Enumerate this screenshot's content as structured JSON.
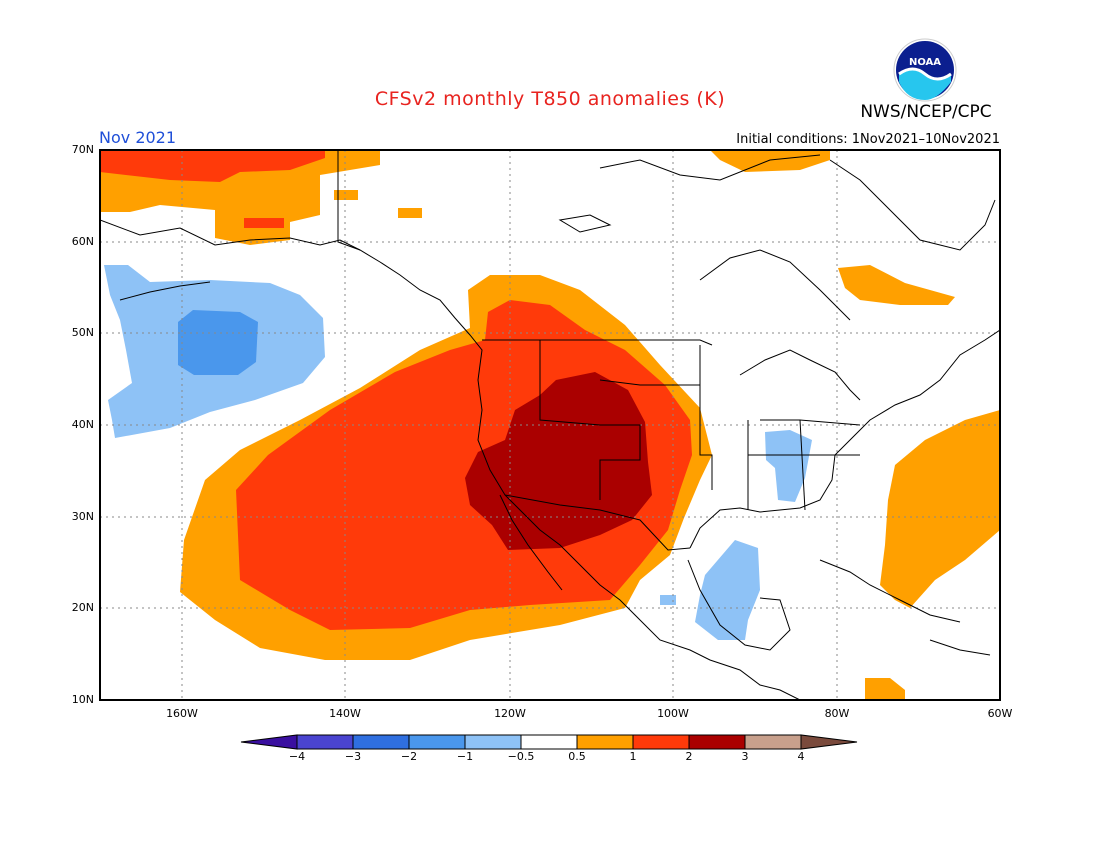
{
  "header": {
    "title": "CFSv2 monthly T850 anomalies (K)",
    "agency": "NWS/NCEP/CPC",
    "period": "Nov 2021",
    "initial_conditions": "Initial conditions: 1Nov2021–10Nov2021"
  },
  "logo": {
    "icon": "noaa-logo",
    "text": "NOAA"
  },
  "axes": {
    "lat_labels": [
      "70N",
      "60N",
      "50N",
      "40N",
      "30N",
      "20N",
      "10N"
    ],
    "lon_labels": [
      "160W",
      "140W",
      "120W",
      "100W",
      "80W",
      "60W"
    ]
  },
  "colorbar": {
    "labels": [
      "−4",
      "−3",
      "−2",
      "−1",
      "−0.5",
      "0.5",
      "1",
      "2",
      "3",
      "4"
    ],
    "colors": [
      "#3a0fa0",
      "#4a44d0",
      "#2f6fe0",
      "#4a97ec",
      "#8ec2f6",
      "#ffffff",
      "#ffa000",
      "#ff3a0a",
      "#aa0000",
      "#c8a08c",
      "#7a4a3c"
    ]
  },
  "map": {
    "region": "North Pacific and North America",
    "lat_range": [
      "10N",
      "70N"
    ],
    "lon_range": [
      "170W",
      "60W"
    ],
    "anomaly_regions": [
      {
        "name": "east-pacific-warm-anomaly",
        "level": "1 to 2 K"
      },
      {
        "name": "western-us-core-warm-anomaly",
        "level": "2 to 3 K"
      },
      {
        "name": "gulf-of-alaska-cold-anomaly",
        "level": "-2 to -1 K"
      },
      {
        "name": "western-atlantic-warm-anomaly",
        "level": "0.5 to 1 K"
      },
      {
        "name": "mississippi-valley-cold-anomaly",
        "level": "-1 to -0.5 K"
      },
      {
        "name": "gulf-of-mexico-cold-anomaly",
        "level": "-1 to -0.5 K"
      },
      {
        "name": "arctic-coast-warm-anomaly",
        "level": "0.5 to 2 K"
      }
    ]
  }
}
